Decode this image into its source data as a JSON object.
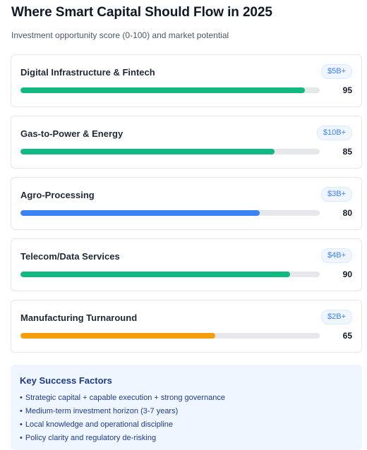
{
  "header": {
    "title": "Where Smart Capital Should Flow in 2025",
    "subtitle": "Investment opportunity score (0-100) and market potential"
  },
  "colors": {
    "green": "#10b981",
    "blue": "#3b82f6",
    "orange": "#f59e0b",
    "track": "#e5e7eb"
  },
  "chart_data": {
    "type": "bar",
    "orientation": "horizontal",
    "title": "Where Smart Capital Should Flow in 2025",
    "subtitle": "Investment opportunity score (0-100) and market potential",
    "xlim": [
      0,
      100
    ],
    "categories": [
      "Digital Infrastructure & Fintech",
      "Gas-to-Power & Energy",
      "Agro-Processing",
      "Telecom/Data Services",
      "Manufacturing Turnaround"
    ],
    "values": [
      95,
      85,
      80,
      90,
      65
    ],
    "market_potential": [
      "$5B+",
      "$10B+",
      "$3B+",
      "$4B+",
      "$2B+"
    ],
    "bar_colors": [
      "#10b981",
      "#10b981",
      "#3b82f6",
      "#10b981",
      "#f59e0b"
    ]
  },
  "success_factors": {
    "title": "Key Success Factors",
    "bullet": "•",
    "items": [
      "Strategic capital + capable execution + strong governance",
      "Medium-term investment horizon (3-7 years)",
      "Local knowledge and operational discipline",
      "Policy clarity and regulatory de-risking"
    ]
  }
}
